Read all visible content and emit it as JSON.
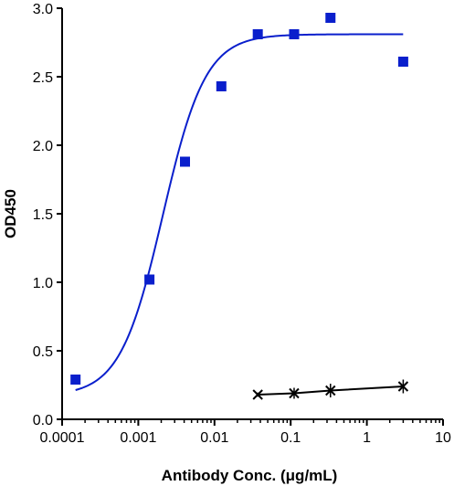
{
  "chart_data": {
    "type": "scatter",
    "xlabel": "Antibody Conc. (μg/mL)",
    "ylabel": "OD450",
    "x_scale": "log",
    "xlim": [
      0.0001,
      10
    ],
    "ylim": [
      0,
      3.0
    ],
    "x_ticks": [
      0.0001,
      0.001,
      0.01,
      0.1,
      1,
      10
    ],
    "x_tick_labels": [
      "0.0001",
      "0.001",
      "0.01",
      "0.1",
      "1",
      "10"
    ],
    "y_ticks": [
      0,
      0.5,
      1.0,
      1.5,
      2.0,
      2.5,
      3.0
    ],
    "y_tick_labels": [
      "0.0",
      "0.5",
      "1.0",
      "1.5",
      "2.0",
      "2.5",
      "3.0"
    ],
    "grid": false,
    "legend": "none",
    "series": [
      {
        "marker": "square",
        "color": "#0a1fcc",
        "x": [
          0.00015,
          0.0014,
          0.0041,
          0.0123,
          0.037,
          0.111,
          0.333,
          3.0
        ],
        "y": [
          0.29,
          1.02,
          1.88,
          2.43,
          2.81,
          2.81,
          2.93,
          2.61
        ],
        "fit": {
          "bottom": 0.17,
          "top": 2.81,
          "ec50": 0.0021,
          "hill": 1.55
        }
      },
      {
        "marker": "x",
        "color": "#000000",
        "x": [
          0.037,
          0.111,
          0.333,
          3.0
        ],
        "y": [
          0.18,
          0.19,
          0.21,
          0.24
        ],
        "y_err": [
          0.015,
          0.04,
          0.05,
          0.05
        ]
      }
    ]
  }
}
